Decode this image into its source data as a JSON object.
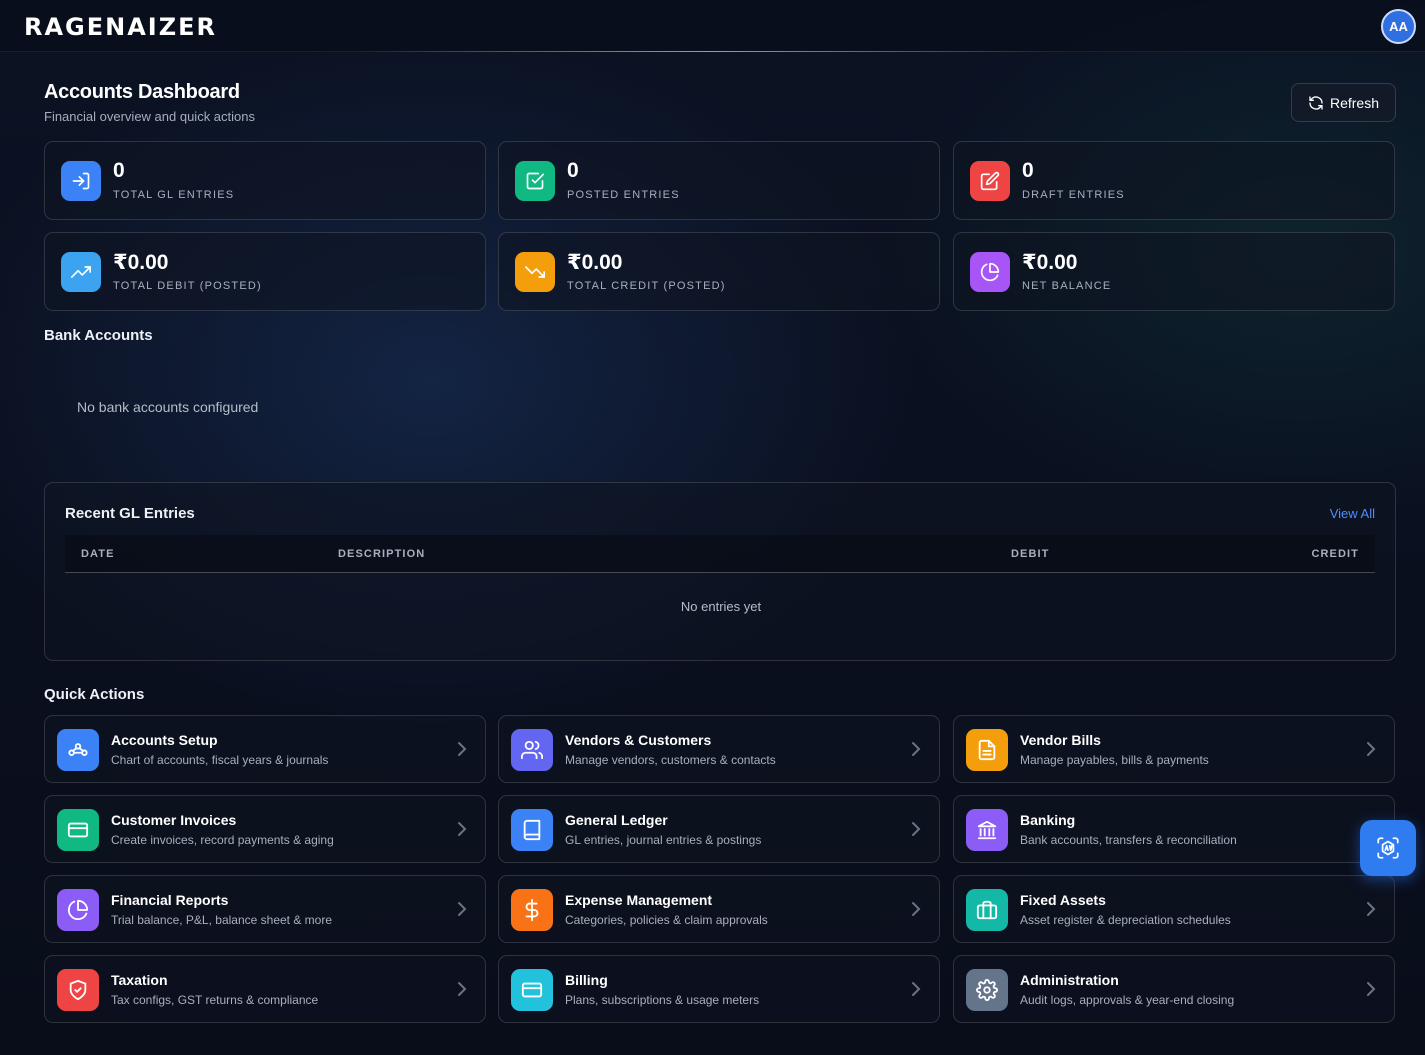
{
  "app": {
    "logo": "RAGENAIZER",
    "avatar_initials": "AA"
  },
  "header": {
    "title": "Accounts Dashboard",
    "subtitle": "Financial overview and quick actions",
    "refresh_label": "Refresh"
  },
  "stats": [
    {
      "value": "0",
      "label": "TOTAL GL ENTRIES",
      "icon": "login-arrow-icon",
      "color": "#3b82f6"
    },
    {
      "value": "0",
      "label": "POSTED ENTRIES",
      "icon": "check-square-icon",
      "color": "#10b981"
    },
    {
      "value": "0",
      "label": "DRAFT ENTRIES",
      "icon": "edit-icon",
      "color": "#ef4444"
    },
    {
      "value": "₹0.00",
      "label": "TOTAL DEBIT (POSTED)",
      "icon": "trending-up-icon",
      "color": "#3ba3f0"
    },
    {
      "value": "₹0.00",
      "label": "TOTAL CREDIT (POSTED)",
      "icon": "trending-down-icon",
      "color": "#f59e0b"
    },
    {
      "value": "₹0.00",
      "label": "NET BALANCE",
      "icon": "pie-chart-icon",
      "color": "#a855f7"
    }
  ],
  "bank": {
    "title": "Bank Accounts",
    "empty": "No bank accounts configured"
  },
  "gl": {
    "title": "Recent GL Entries",
    "view_all": "View All",
    "columns": [
      "DATE",
      "DESCRIPTION",
      "DEBIT",
      "CREDIT"
    ],
    "empty": "No entries yet"
  },
  "quick_actions": {
    "title": "Quick Actions",
    "items": [
      {
        "title": "Accounts Setup",
        "desc": "Chart of accounts, fiscal years & journals",
        "icon": "network-icon",
        "color": "#3b82f6"
      },
      {
        "title": "Vendors & Customers",
        "desc": "Manage vendors, customers & contacts",
        "icon": "users-icon",
        "color": "#6366f1"
      },
      {
        "title": "Vendor Bills",
        "desc": "Manage payables, bills & payments",
        "icon": "file-text-icon",
        "color": "#f59e0b"
      },
      {
        "title": "Customer Invoices",
        "desc": "Create invoices, record payments & aging",
        "icon": "credit-card-icon",
        "color": "#10b981"
      },
      {
        "title": "General Ledger",
        "desc": "GL entries, journal entries & postings",
        "icon": "book-icon",
        "color": "#3b82f6"
      },
      {
        "title": "Banking",
        "desc": "Bank accounts, transfers & reconciliation",
        "icon": "bank-icon",
        "color": "#8b5cf6"
      },
      {
        "title": "Financial Reports",
        "desc": "Trial balance, P&L, balance sheet & more",
        "icon": "pie-chart-icon",
        "color": "#8b5cf6"
      },
      {
        "title": "Expense Management",
        "desc": "Categories, policies & claim approvals",
        "icon": "dollar-icon",
        "color": "#f97316"
      },
      {
        "title": "Fixed Assets",
        "desc": "Asset register & depreciation schedules",
        "icon": "briefcase-icon",
        "color": "#14b8a6"
      },
      {
        "title": "Taxation",
        "desc": "Tax configs, GST returns & compliance",
        "icon": "shield-check-icon",
        "color": "#ef4444"
      },
      {
        "title": "Billing",
        "desc": "Plans, subscriptions & usage meters",
        "icon": "credit-card-icon",
        "color": "#22c1dc"
      },
      {
        "title": "Administration",
        "desc": "Audit logs, approvals & year-end closing",
        "icon": "gear-icon",
        "color": "#64748b"
      }
    ]
  },
  "assistant": {
    "icon": "ai-assistant-icon"
  }
}
